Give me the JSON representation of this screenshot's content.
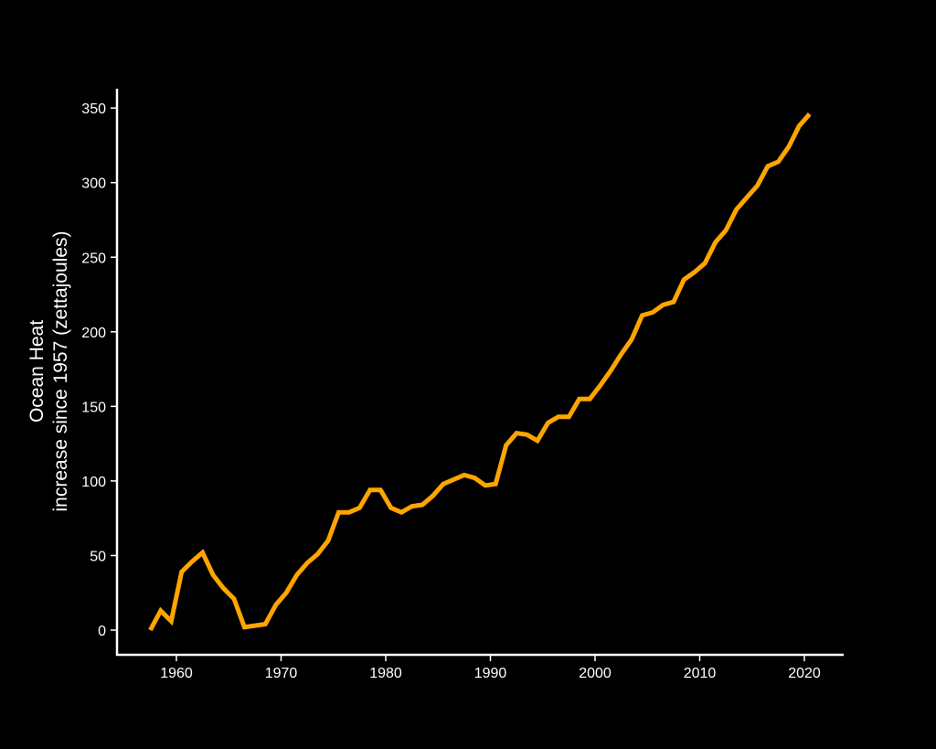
{
  "chart_data": {
    "type": "line",
    "title": "",
    "xlabel": "",
    "ylabel": "Ocean Heat\nincrease since 1957 (zettajoules)",
    "ylabel_lines": [
      "Ocean Heat",
      "increase since 1957 (zettajoules)"
    ],
    "xlim": [
      1955,
      2023
    ],
    "ylim": [
      -18,
      362
    ],
    "xticks": [
      1960,
      1970,
      1980,
      1990,
      2000,
      2010,
      2020
    ],
    "yticks": [
      0,
      50,
      100,
      150,
      200,
      250,
      300,
      350
    ],
    "grid": false,
    "legend": null,
    "line_color": "#FFA500",
    "background": "#000000",
    "series": [
      {
        "name": "Ocean Heat",
        "x": [
          1957,
          1958,
          1959,
          1960,
          1961,
          1962,
          1963,
          1964,
          1965,
          1966,
          1967,
          1968,
          1969,
          1970,
          1971,
          1972,
          1973,
          1974,
          1975,
          1976,
          1977,
          1978,
          1979,
          1980,
          1981,
          1982,
          1983,
          1984,
          1985,
          1986,
          1987,
          1988,
          1989,
          1990,
          1991,
          1992,
          1993,
          1994,
          1995,
          1996,
          1997,
          1998,
          1999,
          2000,
          2001,
          2002,
          2003,
          2004,
          2005,
          2006,
          2007,
          2008,
          2009,
          2010,
          2011,
          2012,
          2013,
          2014,
          2015,
          2016,
          2017,
          2018,
          2019,
          2020
        ],
        "values": [
          0,
          13,
          6,
          39,
          46,
          52,
          37,
          28,
          21,
          2,
          3,
          4,
          17,
          25,
          37,
          45,
          51,
          60,
          79,
          79,
          82,
          94,
          94,
          82,
          79,
          83,
          84,
          90,
          98,
          101,
          104,
          102,
          97,
          98,
          124,
          132,
          131,
          127,
          139,
          143,
          143,
          155,
          155,
          164,
          174,
          185,
          195,
          211,
          213,
          218,
          220,
          235,
          240,
          246,
          260,
          268,
          282,
          290,
          298,
          311,
          314,
          324,
          338,
          346
        ]
      }
    ]
  }
}
